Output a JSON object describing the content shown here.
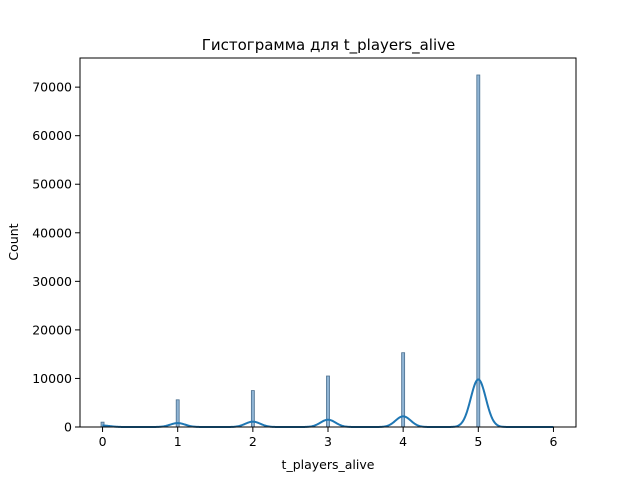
{
  "chart_data": {
    "type": "bar",
    "title": "Гистограмма для t_players_alive",
    "xlabel": "t_players_alive",
    "ylabel": "Count",
    "xlim": [
      -0.3,
      6.3
    ],
    "ylim": [
      0,
      76000
    ],
    "xticks": [
      0,
      1,
      2,
      3,
      4,
      5,
      6
    ],
    "yticks": [
      0,
      10000,
      20000,
      30000,
      40000,
      50000,
      60000,
      70000
    ],
    "tick_labels_x": [
      "0",
      "1",
      "2",
      "3",
      "4",
      "5",
      "6"
    ],
    "tick_labels_y": [
      "0",
      "10000",
      "20000",
      "30000",
      "40000",
      "50000",
      "60000",
      "70000"
    ],
    "grid": false,
    "bar_color": "#8fb4d4",
    "bar_edge_color": "#4a6f8f",
    "line_color": "#1f77b4",
    "bins": [
      {
        "x": 0,
        "count": 1000
      },
      {
        "x": 1,
        "count": 5600
      },
      {
        "x": 2,
        "count": 7500
      },
      {
        "x": 3,
        "count": 10500
      },
      {
        "x": 4,
        "count": 15300
      },
      {
        "x": 5,
        "count": 72500
      }
    ],
    "kde": {
      "bandwidth": 0.1,
      "peaks": [
        {
          "x": 0,
          "y": 300
        },
        {
          "x": 1,
          "y": 800
        },
        {
          "x": 2,
          "y": 1100
        },
        {
          "x": 3,
          "y": 1500
        },
        {
          "x": 4,
          "y": 2200
        },
        {
          "x": 5,
          "y": 9800
        }
      ],
      "x_range": [
        0,
        6
      ]
    }
  }
}
